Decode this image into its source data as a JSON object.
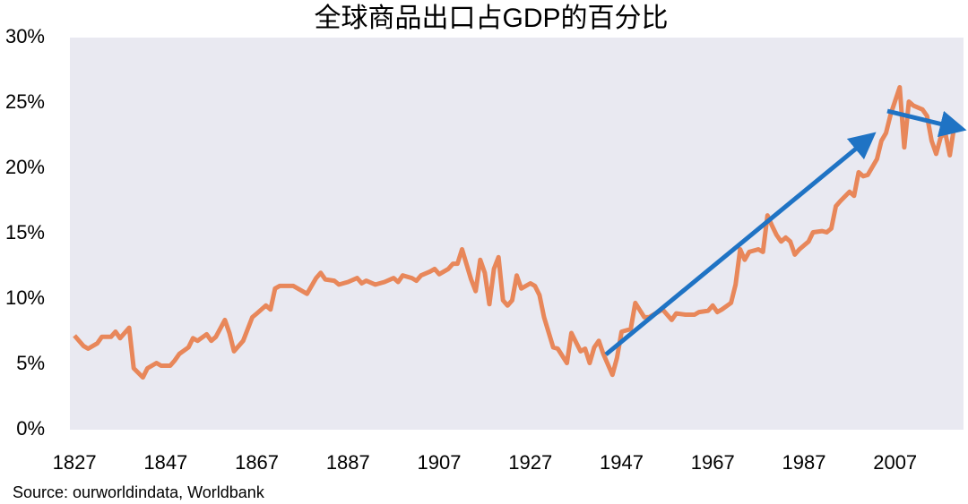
{
  "chart_data": {
    "type": "line",
    "title": "全球商品出口占GDP的百分比",
    "source": "Source: ourworldindata,  Worldbank",
    "x": [
      1827,
      1829,
      1830,
      1832,
      1833,
      1835,
      1836,
      1837,
      1839,
      1840,
      1842,
      1843,
      1845,
      1846,
      1848,
      1849,
      1850,
      1852,
      1853,
      1854,
      1856,
      1857,
      1858,
      1860,
      1861,
      1862,
      1864,
      1866,
      1867,
      1869,
      1870,
      1871,
      1872,
      1875,
      1876,
      1878,
      1880,
      1881,
      1882,
      1884,
      1885,
      1887,
      1889,
      1890,
      1891,
      1893,
      1895,
      1897,
      1898,
      1899,
      1901,
      1902,
      1903,
      1905,
      1906,
      1907,
      1909,
      1910,
      1911,
      1912,
      1914,
      1915,
      1916,
      1917,
      1918,
      1919,
      1920,
      1921,
      1922,
      1923,
      1924,
      1925,
      1927,
      1928,
      1929,
      1930,
      1932,
      1933,
      1935,
      1936,
      1938,
      1939,
      1940,
      1941,
      1942,
      1943,
      1945,
      1946,
      1947,
      1949,
      1950,
      1952,
      1953,
      1955,
      1956,
      1958,
      1959,
      1961,
      1963,
      1964,
      1966,
      1967,
      1968,
      1969,
      1971,
      1972,
      1973,
      1974,
      1975,
      1977,
      1978,
      1979,
      1980,
      1981,
      1982,
      1983,
      1984,
      1985,
      1986,
      1988,
      1989,
      1991,
      1992,
      1993,
      1994,
      1995,
      1997,
      1998,
      1999,
      2000,
      2001,
      2003,
      2004,
      2005,
      2006,
      2008,
      2009,
      2010,
      2011,
      2013,
      2014,
      2015,
      2016,
      2017,
      2018,
      2019,
      2020
    ],
    "series": [
      {
        "color": "#e8875a",
        "values": [
          7.2,
          6.4,
          6.2,
          6.6,
          7.1,
          7.1,
          7.5,
          7.0,
          7.8,
          4.7,
          4.0,
          4.7,
          5.1,
          4.9,
          4.9,
          5.3,
          5.8,
          6.3,
          7.0,
          6.8,
          7.3,
          6.8,
          7.1,
          8.4,
          7.4,
          6.0,
          6.8,
          8.6,
          8.9,
          9.5,
          9.2,
          10.8,
          11.0,
          11.0,
          10.8,
          10.4,
          11.6,
          12.0,
          11.5,
          11.4,
          11.1,
          11.3,
          11.6,
          11.2,
          11.4,
          11.1,
          11.3,
          11.6,
          11.3,
          11.8,
          11.6,
          11.4,
          11.8,
          12.1,
          12.3,
          11.9,
          12.3,
          12.7,
          12.7,
          13.8,
          11.5,
          10.6,
          13.0,
          12.0,
          9.6,
          12.3,
          13.2,
          9.9,
          9.5,
          9.9,
          11.8,
          10.8,
          11.2,
          11.0,
          10.3,
          8.6,
          6.3,
          6.2,
          5.1,
          7.4,
          6.0,
          6.2,
          5.1,
          6.3,
          6.8,
          5.8,
          4.2,
          5.5,
          7.5,
          7.7,
          9.7,
          8.6,
          8.6,
          9.0,
          9.2,
          8.4,
          8.9,
          8.8,
          8.8,
          9.0,
          9.1,
          9.5,
          9.0,
          9.2,
          9.7,
          11.1,
          13.8,
          13.0,
          13.6,
          13.8,
          13.6,
          16.4,
          15.6,
          14.9,
          14.4,
          14.7,
          14.4,
          13.4,
          13.8,
          14.4,
          15.1,
          15.2,
          15.1,
          15.4,
          17.1,
          17.5,
          18.2,
          17.9,
          19.7,
          19.4,
          19.5,
          20.7,
          22.1,
          22.7,
          24.1,
          26.2,
          21.6,
          25.1,
          24.8,
          24.5,
          24.0,
          22.1,
          21.1,
          22.4,
          22.7,
          21.0,
          23.3
        ]
      }
    ],
    "xlim": [
      1826,
      2022
    ],
    "xticks": [
      1827,
      1847,
      1867,
      1887,
      1907,
      1927,
      1947,
      1967,
      1987,
      2007
    ],
    "ylim": [
      0,
      30
    ],
    "yticks": [
      {
        "value": 0,
        "label": "0%"
      },
      {
        "value": 5,
        "label": "5%"
      },
      {
        "value": 10,
        "label": "10%"
      },
      {
        "value": 15,
        "label": "15%"
      },
      {
        "value": 20,
        "label": "20%"
      },
      {
        "value": 25,
        "label": "25%"
      },
      {
        "value": 30,
        "label": "30%"
      }
    ],
    "grid": false
  }
}
